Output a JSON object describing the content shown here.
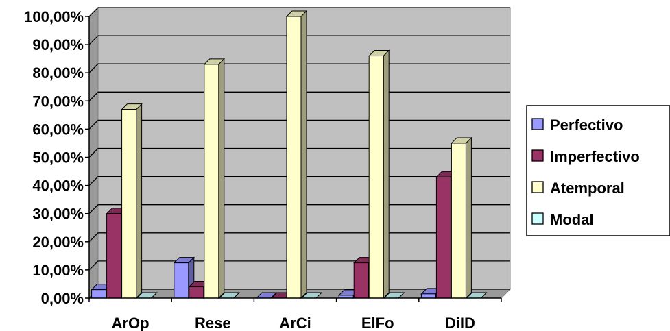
{
  "chart_data": {
    "type": "bar",
    "title": "",
    "xlabel": "",
    "ylabel": "",
    "categories": [
      "ArOp",
      "Rese",
      "ArCi",
      "ElFo",
      "DiID"
    ],
    "series": [
      {
        "name": "Perfectivo",
        "values": [
          3,
          12.5,
          0,
          1,
          1.5
        ],
        "color": "#9999FF"
      },
      {
        "name": "Imperfectivo",
        "values": [
          30,
          4,
          0,
          12.5,
          43
        ],
        "color": "#993366"
      },
      {
        "name": "Atemporal",
        "values": [
          67,
          83,
          100,
          86,
          55
        ],
        "color": "#FFFFCC"
      },
      {
        "name": "Modal",
        "values": [
          0,
          0,
          0,
          0,
          0
        ],
        "color": "#CCFFFF"
      }
    ],
    "ylim": [
      0,
      100
    ],
    "yticks": [
      "0,00%",
      "10,00%",
      "20,00%",
      "30,00%",
      "40,00%",
      "50,00%",
      "60,00%",
      "70,00%",
      "80,00%",
      "90,00%",
      "100,00%"
    ],
    "grid": true,
    "legend": "right",
    "plot_background": "#C0C0C0"
  }
}
